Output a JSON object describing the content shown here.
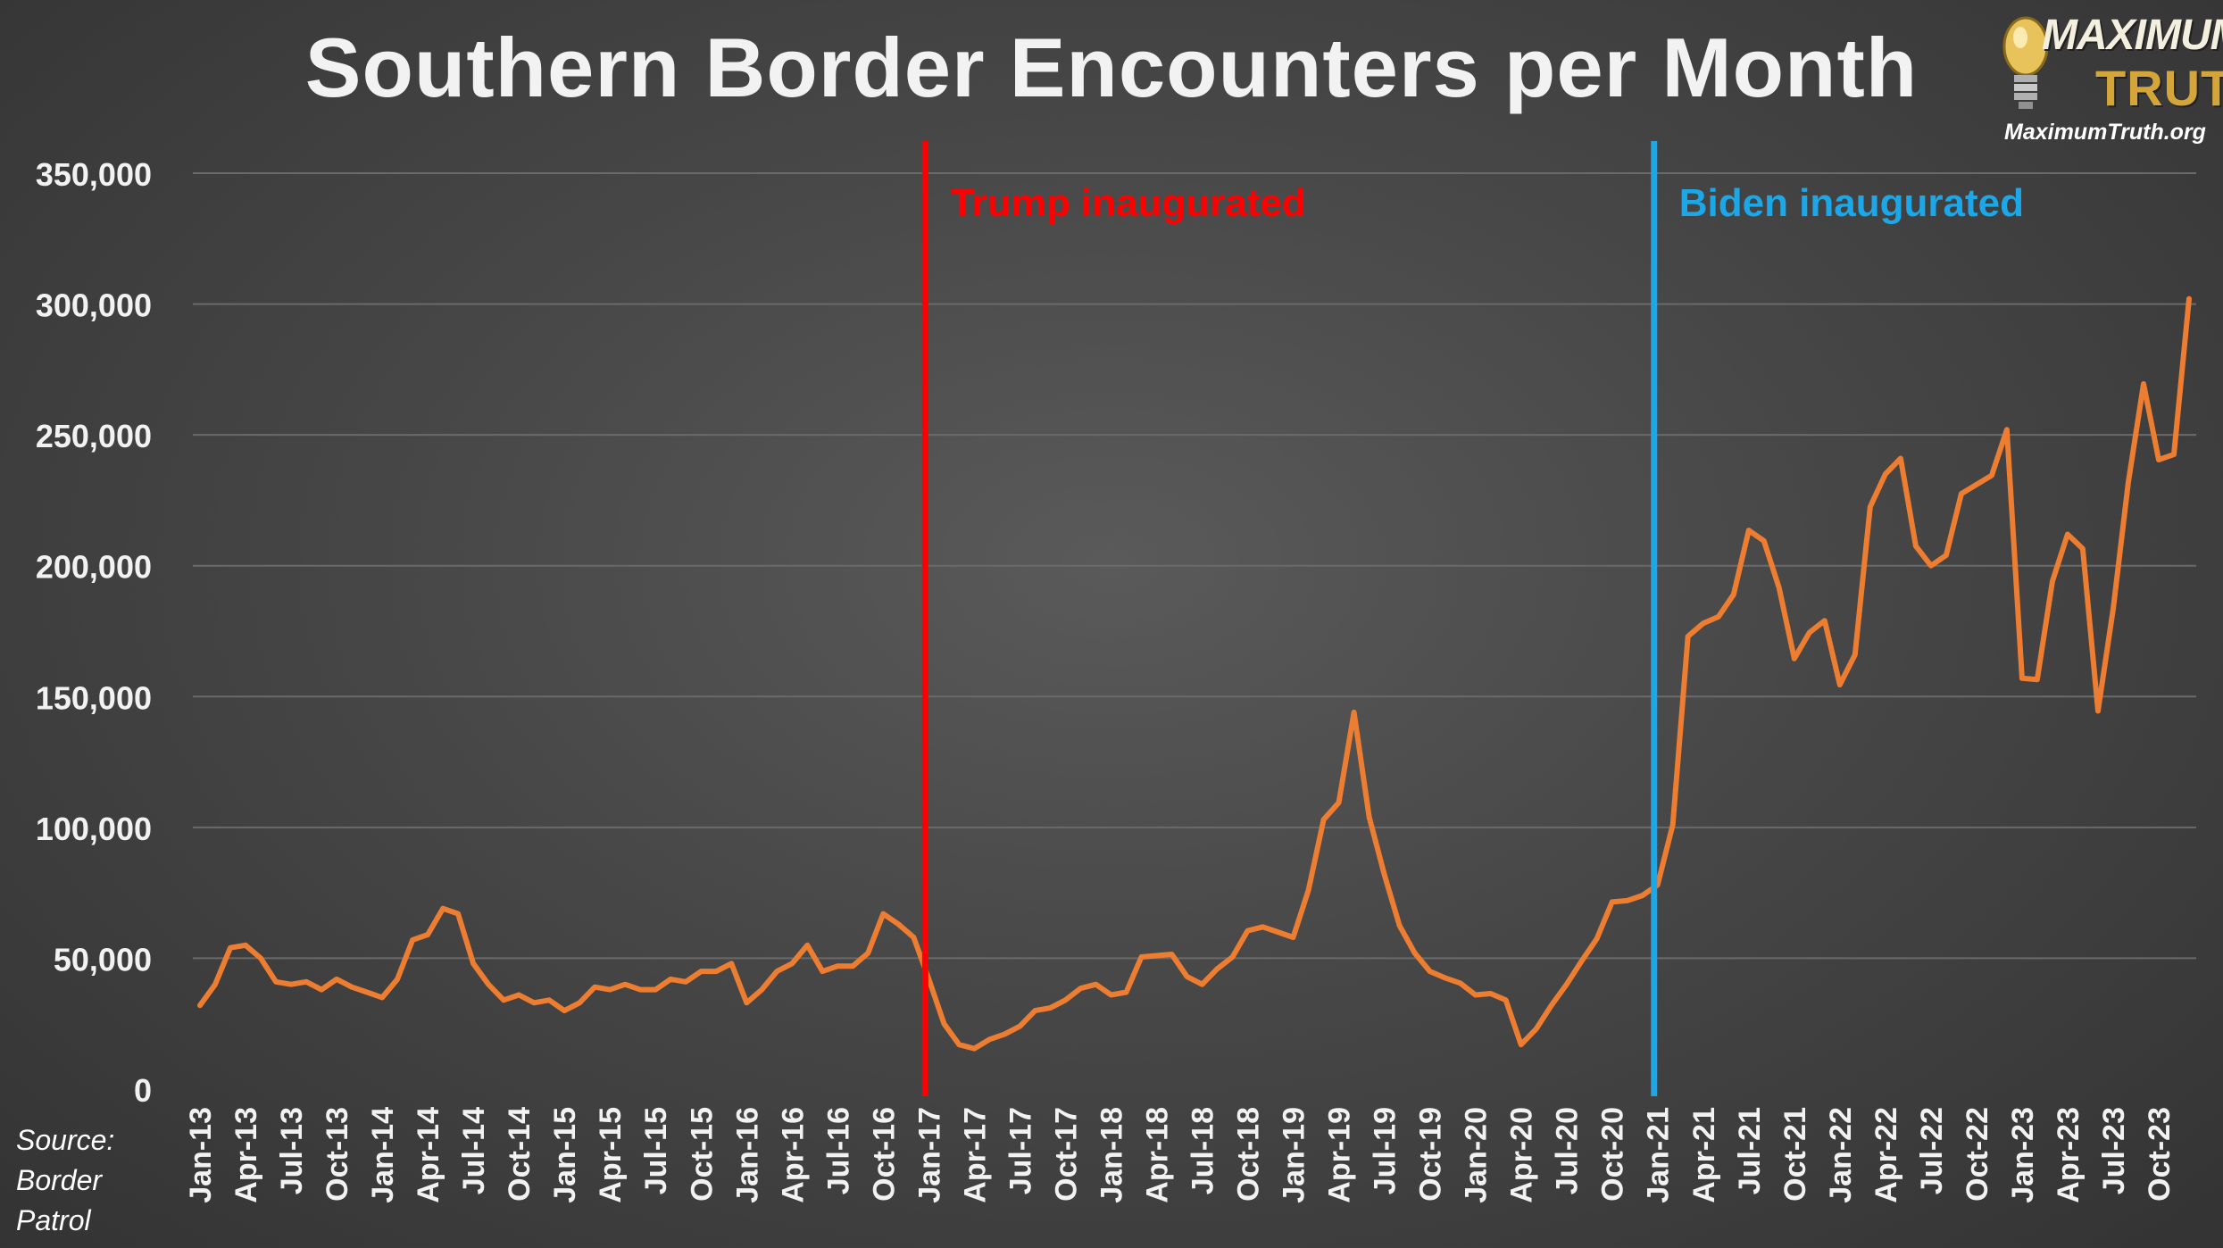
{
  "title": "Southern Border Encounters per Month",
  "logo": {
    "word1": "MAXIMUM",
    "word2": "TRUTH",
    "url": "MaximumTruth.org"
  },
  "source": {
    "line1": "Source:",
    "line2": "Border",
    "line3": "Patrol"
  },
  "colors": {
    "line": "#ed7d31",
    "trump": "#ff0000",
    "biden": "#1ba7e8",
    "grid": "#6a6a6a",
    "text": "#f2f2f2"
  },
  "chart_data": {
    "type": "line",
    "title": "Southern Border Encounters per Month",
    "xlabel": "",
    "ylabel": "",
    "ylim": [
      0,
      350000
    ],
    "yticks": [
      0,
      50000,
      100000,
      150000,
      200000,
      250000,
      300000,
      350000
    ],
    "ytick_labels": [
      "0",
      "50,000",
      "100,000",
      "150,000",
      "200,000",
      "250,000",
      "300,000",
      "350,000"
    ],
    "grid": true,
    "legend": "none",
    "x_tick_labels": [
      "Jan-13",
      "Apr-13",
      "Jul-13",
      "Oct-13",
      "Jan-14",
      "Apr-14",
      "Jul-14",
      "Oct-14",
      "Jan-15",
      "Apr-15",
      "Jul-15",
      "Oct-15",
      "Jan-16",
      "Apr-16",
      "Jul-16",
      "Oct-16",
      "Jan-17",
      "Apr-17",
      "Jul-17",
      "Oct-17",
      "Jan-18",
      "Apr-18",
      "Jul-18",
      "Oct-18",
      "Jan-19",
      "Apr-19",
      "Jul-19",
      "Oct-19",
      "Jan-20",
      "Apr-20",
      "Jul-20",
      "Oct-20",
      "Jan-21",
      "Apr-21",
      "Jul-21",
      "Oct-21",
      "Jan-22",
      "Apr-22",
      "Jul-22",
      "Oct-22",
      "Jan-23",
      "Apr-23",
      "Jul-23",
      "Oct-23"
    ],
    "x_start": "Jan-13",
    "x_step": "month",
    "series": [
      {
        "values": [
          32000,
          40000,
          54000,
          55000,
          50000,
          41000,
          40000,
          41000,
          38000,
          42000,
          39000,
          37000,
          35000,
          42000,
          57000,
          59000,
          69000,
          67000,
          48000,
          40000,
          34000,
          36000,
          33000,
          34000,
          30000,
          33000,
          39000,
          38000,
          40000,
          38000,
          38000,
          42000,
          41000,
          45000,
          45000,
          48000,
          33000,
          38000,
          45000,
          48000,
          55000,
          45000,
          47000,
          47000,
          52000,
          67000,
          63000,
          58000,
          42000,
          25000,
          17000,
          15500,
          19000,
          21000,
          24000,
          30000,
          31000,
          34000,
          38500,
          40000,
          36000,
          37000,
          50500,
          51000,
          51500,
          43000,
          40000,
          46000,
          50500,
          60500,
          62000,
          60000,
          58000,
          76000,
          103000,
          109500,
          144000,
          104000,
          82000,
          62500,
          52000,
          45000,
          42500,
          40500,
          36000,
          36500,
          34000,
          17000,
          23000,
          32000,
          40000,
          49000,
          57500,
          71500,
          72000,
          74000,
          78000,
          101000,
          173000,
          178000,
          180500,
          189000,
          213500,
          209500,
          191500,
          164500,
          174500,
          179000,
          154500,
          166000,
          222500,
          235000,
          241000,
          207500,
          200000,
          204000,
          227500,
          231000,
          234500,
          252000,
          157000,
          156500,
          194000,
          212000,
          206500,
          144500,
          183500,
          232000,
          269500,
          240500,
          242500,
          302000
        ]
      }
    ],
    "annotations": [
      {
        "label": "Trump inaugurated",
        "at": "Jan-17",
        "color": "#ff0000"
      },
      {
        "label": "Biden inaugurated",
        "at": "Jan-21",
        "color": "#1ba7e8"
      }
    ]
  }
}
